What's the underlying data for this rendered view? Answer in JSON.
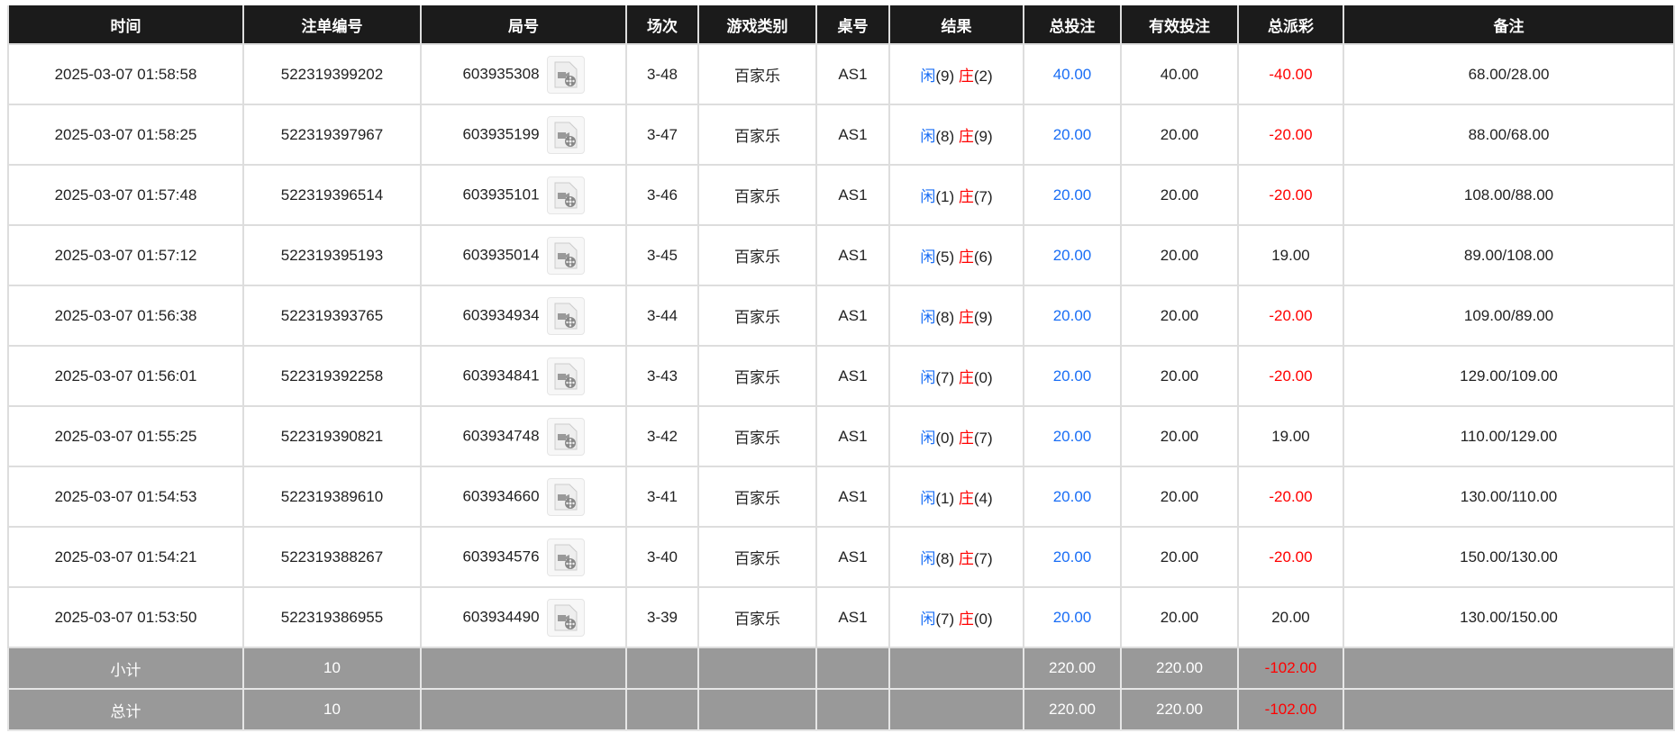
{
  "headers": [
    "时间",
    "注单编号",
    "局号",
    "场次",
    "游戏类别",
    "桌号",
    "结果",
    "总投注",
    "有效投注",
    "总派彩",
    "备注"
  ],
  "colors": {
    "player": "#1a6ef5",
    "banker": "#ff0000",
    "negative": "#ff0000",
    "header_bg": "#1b1b1b",
    "summary_bg": "#999999"
  },
  "rows": [
    {
      "time": "2025-03-07 01:58:58",
      "bet_id": "522319399202",
      "round": "603935308",
      "session": "3-48",
      "game": "百家乐",
      "table": "AS1",
      "player": "闲",
      "player_score": "(9)",
      "banker": "庄",
      "banker_score": "(2)",
      "total_bet": "40.00",
      "valid_bet": "40.00",
      "payout": "-40.00",
      "payout_negative": true,
      "note": "68.00/28.00"
    },
    {
      "time": "2025-03-07 01:58:25",
      "bet_id": "522319397967",
      "round": "603935199",
      "session": "3-47",
      "game": "百家乐",
      "table": "AS1",
      "player": "闲",
      "player_score": "(8)",
      "banker": "庄",
      "banker_score": "(9)",
      "total_bet": "20.00",
      "valid_bet": "20.00",
      "payout": "-20.00",
      "payout_negative": true,
      "note": "88.00/68.00"
    },
    {
      "time": "2025-03-07 01:57:48",
      "bet_id": "522319396514",
      "round": "603935101",
      "session": "3-46",
      "game": "百家乐",
      "table": "AS1",
      "player": "闲",
      "player_score": "(1)",
      "banker": "庄",
      "banker_score": "(7)",
      "total_bet": "20.00",
      "valid_bet": "20.00",
      "payout": "-20.00",
      "payout_negative": true,
      "note": "108.00/88.00"
    },
    {
      "time": "2025-03-07 01:57:12",
      "bet_id": "522319395193",
      "round": "603935014",
      "session": "3-45",
      "game": "百家乐",
      "table": "AS1",
      "player": "闲",
      "player_score": "(5)",
      "banker": "庄",
      "banker_score": "(6)",
      "total_bet": "20.00",
      "valid_bet": "20.00",
      "payout": "19.00",
      "payout_negative": false,
      "note": "89.00/108.00"
    },
    {
      "time": "2025-03-07 01:56:38",
      "bet_id": "522319393765",
      "round": "603934934",
      "session": "3-44",
      "game": "百家乐",
      "table": "AS1",
      "player": "闲",
      "player_score": "(8)",
      "banker": "庄",
      "banker_score": "(9)",
      "total_bet": "20.00",
      "valid_bet": "20.00",
      "payout": "-20.00",
      "payout_negative": true,
      "note": "109.00/89.00"
    },
    {
      "time": "2025-03-07 01:56:01",
      "bet_id": "522319392258",
      "round": "603934841",
      "session": "3-43",
      "game": "百家乐",
      "table": "AS1",
      "player": "闲",
      "player_score": "(7)",
      "banker": "庄",
      "banker_score": "(0)",
      "total_bet": "20.00",
      "valid_bet": "20.00",
      "payout": "-20.00",
      "payout_negative": true,
      "note": "129.00/109.00"
    },
    {
      "time": "2025-03-07 01:55:25",
      "bet_id": "522319390821",
      "round": "603934748",
      "session": "3-42",
      "game": "百家乐",
      "table": "AS1",
      "player": "闲",
      "player_score": "(0)",
      "banker": "庄",
      "banker_score": "(7)",
      "total_bet": "20.00",
      "valid_bet": "20.00",
      "payout": "19.00",
      "payout_negative": false,
      "note": "110.00/129.00"
    },
    {
      "time": "2025-03-07 01:54:53",
      "bet_id": "522319389610",
      "round": "603934660",
      "session": "3-41",
      "game": "百家乐",
      "table": "AS1",
      "player": "闲",
      "player_score": "(1)",
      "banker": "庄",
      "banker_score": "(4)",
      "total_bet": "20.00",
      "valid_bet": "20.00",
      "payout": "-20.00",
      "payout_negative": true,
      "note": "130.00/110.00"
    },
    {
      "time": "2025-03-07 01:54:21",
      "bet_id": "522319388267",
      "round": "603934576",
      "session": "3-40",
      "game": "百家乐",
      "table": "AS1",
      "player": "闲",
      "player_score": "(8)",
      "banker": "庄",
      "banker_score": "(7)",
      "total_bet": "20.00",
      "valid_bet": "20.00",
      "payout": "-20.00",
      "payout_negative": true,
      "note": "150.00/130.00"
    },
    {
      "time": "2025-03-07 01:53:50",
      "bet_id": "522319386955",
      "round": "603934490",
      "session": "3-39",
      "game": "百家乐",
      "table": "AS1",
      "player": "闲",
      "player_score": "(7)",
      "banker": "庄",
      "banker_score": "(0)",
      "total_bet": "20.00",
      "valid_bet": "20.00",
      "payout": "20.00",
      "payout_negative": false,
      "note": "130.00/150.00"
    }
  ],
  "summary": [
    {
      "label": "小计",
      "count": "10",
      "total_bet": "220.00",
      "valid_bet": "220.00",
      "payout": "-102.00"
    },
    {
      "label": "总计",
      "count": "10",
      "total_bet": "220.00",
      "valid_bet": "220.00",
      "payout": "-102.00"
    }
  ]
}
